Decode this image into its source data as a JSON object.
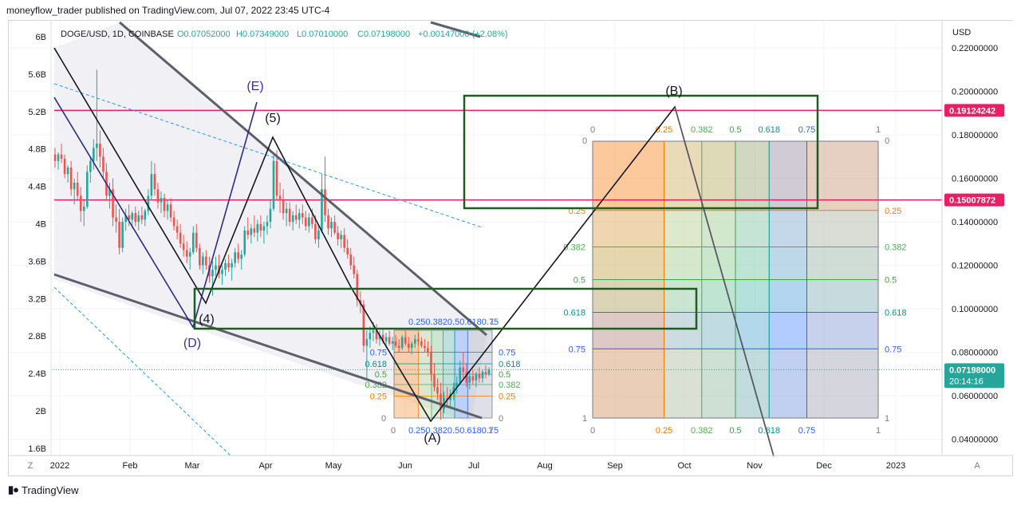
{
  "header": {
    "publish_text": "moneyflow_trader published on TradingView.com, Jul 07, 2022 23:45 UTC-4"
  },
  "symbol_bar": {
    "symbol": "DOGE/USD, 1D, COINBASE",
    "open": "O0.07052000",
    "high": "H0.07349000",
    "low": "L0.07010000",
    "close": "C0.07198000",
    "change": "+0.00147000 (+2.08%)"
  },
  "footer": {
    "brand": "TradingView"
  },
  "chart_data": {
    "type": "candlestick",
    "symbol": "DOGE/USD",
    "timeframe": "1D",
    "exchange": "COINBASE",
    "right_axis": {
      "unit": "USD",
      "ticks": [
        "0.22000000",
        "0.20000000",
        "0.18000000",
        "0.16000000",
        "0.14000000",
        "0.12000000",
        "0.10000000",
        "0.08000000",
        "0.06000000",
        "0.04000000"
      ],
      "range": [
        0.0325,
        0.2325
      ]
    },
    "left_axis": {
      "ticks": [
        "6B",
        "5.6B",
        "5.2B",
        "4.8B",
        "4.4B",
        "4B",
        "3.6B",
        "3.2B",
        "2.8B",
        "2.4B",
        "2B",
        "1.6B"
      ]
    },
    "x_axis": {
      "ticks": [
        "2022",
        "Feb",
        "Mar",
        "Apr",
        "May",
        "Jun",
        "Jul",
        "Aug",
        "Sep",
        "Oct",
        "Nov",
        "Dec",
        "2023"
      ]
    },
    "price_labels": [
      {
        "value": "0.19124242",
        "color": "#e91e63"
      },
      {
        "value": "0.15007872",
        "color": "#e91e63"
      },
      {
        "value": "0.07198000",
        "time": "20:14:16",
        "color": "#26a69a"
      }
    ],
    "horizontal_levels": [
      0.19124242,
      0.15007872
    ],
    "current_price": 0.07198,
    "wave_labels": [
      {
        "text": "(E)",
        "color": "#3f2e9c"
      },
      {
        "text": "(5)",
        "color": "#131722"
      },
      {
        "text": "(4)",
        "color": "#131722"
      },
      {
        "text": "(D)",
        "color": "#3f2e9c"
      },
      {
        "text": "(A)",
        "color": "#131722"
      },
      {
        "text": "(B)",
        "color": "#131722"
      }
    ],
    "fib_levels": [
      "0",
      "0.25",
      "0.382",
      "0.5",
      "0.618",
      "0.75",
      "1"
    ],
    "fib_colors": {
      "0.25": "#f57c00",
      "0.382": "#4caf50",
      "0.5": "#43a047",
      "0.618": "#009688",
      "0.75": "#2962ff",
      "1": "#787b86",
      "0": "#787b86"
    },
    "small_fib": {
      "top_labels_text": "0.250.3820.50.6180.75",
      "bottom_labels_text": "0.250.3820.50.6180.75"
    },
    "scale_buttons": [
      "Z",
      "A"
    ],
    "candles": [
      [
        0.171,
        0.174,
        0.165,
        0.168
      ],
      [
        0.168,
        0.172,
        0.164,
        0.171
      ],
      [
        0.171,
        0.176,
        0.167,
        0.169
      ],
      [
        0.169,
        0.171,
        0.16,
        0.162
      ],
      [
        0.162,
        0.166,
        0.158,
        0.165
      ],
      [
        0.165,
        0.168,
        0.152,
        0.155
      ],
      [
        0.155,
        0.16,
        0.148,
        0.158
      ],
      [
        0.158,
        0.163,
        0.15,
        0.152
      ],
      [
        0.152,
        0.156,
        0.14,
        0.145
      ],
      [
        0.145,
        0.15,
        0.138,
        0.147
      ],
      [
        0.147,
        0.166,
        0.146,
        0.163
      ],
      [
        0.163,
        0.17,
        0.158,
        0.168
      ],
      [
        0.168,
        0.178,
        0.164,
        0.174
      ],
      [
        0.174,
        0.21,
        0.168,
        0.176
      ],
      [
        0.176,
        0.182,
        0.165,
        0.17
      ],
      [
        0.17,
        0.174,
        0.16,
        0.163
      ],
      [
        0.163,
        0.167,
        0.15,
        0.152
      ],
      [
        0.152,
        0.158,
        0.146,
        0.155
      ],
      [
        0.155,
        0.16,
        0.138,
        0.142
      ],
      [
        0.142,
        0.148,
        0.135,
        0.14
      ],
      [
        0.14,
        0.146,
        0.125,
        0.128
      ],
      [
        0.128,
        0.142,
        0.126,
        0.14
      ],
      [
        0.14,
        0.146,
        0.136,
        0.143
      ],
      [
        0.143,
        0.148,
        0.138,
        0.141
      ],
      [
        0.141,
        0.145,
        0.137,
        0.144
      ],
      [
        0.144,
        0.147,
        0.138,
        0.14
      ],
      [
        0.14,
        0.145,
        0.136,
        0.143
      ],
      [
        0.143,
        0.147,
        0.139,
        0.141
      ],
      [
        0.141,
        0.146,
        0.138,
        0.145
      ],
      [
        0.145,
        0.155,
        0.143,
        0.152
      ],
      [
        0.152,
        0.168,
        0.15,
        0.162
      ],
      [
        0.162,
        0.167,
        0.152,
        0.155
      ],
      [
        0.155,
        0.158,
        0.146,
        0.149
      ],
      [
        0.149,
        0.154,
        0.144,
        0.151
      ],
      [
        0.151,
        0.153,
        0.142,
        0.145
      ],
      [
        0.145,
        0.15,
        0.141,
        0.148
      ],
      [
        0.148,
        0.151,
        0.14,
        0.142
      ],
      [
        0.142,
        0.145,
        0.136,
        0.138
      ],
      [
        0.138,
        0.141,
        0.132,
        0.135
      ],
      [
        0.135,
        0.139,
        0.128,
        0.13
      ],
      [
        0.13,
        0.134,
        0.124,
        0.127
      ],
      [
        0.127,
        0.131,
        0.121,
        0.124
      ],
      [
        0.124,
        0.128,
        0.118,
        0.126
      ],
      [
        0.126,
        0.138,
        0.125,
        0.135
      ],
      [
        0.135,
        0.139,
        0.126,
        0.128
      ],
      [
        0.128,
        0.13,
        0.118,
        0.12
      ],
      [
        0.12,
        0.126,
        0.116,
        0.124
      ],
      [
        0.124,
        0.127,
        0.118,
        0.12
      ],
      [
        0.12,
        0.124,
        0.112,
        0.115
      ],
      [
        0.115,
        0.122,
        0.106,
        0.118
      ],
      [
        0.118,
        0.124,
        0.115,
        0.12
      ],
      [
        0.12,
        0.125,
        0.114,
        0.116
      ],
      [
        0.116,
        0.12,
        0.111,
        0.118
      ],
      [
        0.118,
        0.123,
        0.115,
        0.121
      ],
      [
        0.121,
        0.125,
        0.117,
        0.119
      ],
      [
        0.119,
        0.123,
        0.113,
        0.121
      ],
      [
        0.121,
        0.128,
        0.119,
        0.126
      ],
      [
        0.126,
        0.13,
        0.121,
        0.123
      ],
      [
        0.123,
        0.127,
        0.118,
        0.125
      ],
      [
        0.125,
        0.138,
        0.124,
        0.136
      ],
      [
        0.136,
        0.142,
        0.132,
        0.134
      ],
      [
        0.134,
        0.139,
        0.13,
        0.137
      ],
      [
        0.137,
        0.143,
        0.133,
        0.135
      ],
      [
        0.135,
        0.141,
        0.131,
        0.139
      ],
      [
        0.139,
        0.143,
        0.133,
        0.136
      ],
      [
        0.136,
        0.14,
        0.13,
        0.138
      ],
      [
        0.138,
        0.143,
        0.134,
        0.14
      ],
      [
        0.14,
        0.15,
        0.137,
        0.146
      ],
      [
        0.146,
        0.172,
        0.145,
        0.168
      ],
      [
        0.168,
        0.173,
        0.15,
        0.152
      ],
      [
        0.152,
        0.158,
        0.144,
        0.15
      ],
      [
        0.15,
        0.155,
        0.141,
        0.144
      ],
      [
        0.144,
        0.149,
        0.138,
        0.146
      ],
      [
        0.146,
        0.149,
        0.138,
        0.14
      ],
      [
        0.14,
        0.145,
        0.136,
        0.143
      ],
      [
        0.143,
        0.148,
        0.139,
        0.141
      ],
      [
        0.141,
        0.146,
        0.137,
        0.144
      ],
      [
        0.144,
        0.148,
        0.139,
        0.142
      ],
      [
        0.142,
        0.145,
        0.136,
        0.138
      ],
      [
        0.138,
        0.144,
        0.135,
        0.142
      ],
      [
        0.142,
        0.146,
        0.137,
        0.139
      ],
      [
        0.139,
        0.143,
        0.13,
        0.132
      ],
      [
        0.132,
        0.138,
        0.128,
        0.136
      ],
      [
        0.136,
        0.162,
        0.135,
        0.155
      ],
      [
        0.155,
        0.17,
        0.14,
        0.143
      ],
      [
        0.143,
        0.146,
        0.134,
        0.137
      ],
      [
        0.137,
        0.142,
        0.133,
        0.14
      ],
      [
        0.14,
        0.143,
        0.134,
        0.135
      ],
      [
        0.135,
        0.138,
        0.129,
        0.132
      ],
      [
        0.132,
        0.136,
        0.128,
        0.134
      ],
      [
        0.134,
        0.137,
        0.126,
        0.128
      ],
      [
        0.128,
        0.132,
        0.123,
        0.125
      ],
      [
        0.125,
        0.128,
        0.118,
        0.12
      ],
      [
        0.12,
        0.124,
        0.114,
        0.116
      ],
      [
        0.116,
        0.118,
        0.101,
        0.104
      ],
      [
        0.104,
        0.108,
        0.098,
        0.102
      ],
      [
        0.102,
        0.104,
        0.08,
        0.083
      ],
      [
        0.083,
        0.09,
        0.068,
        0.086
      ],
      [
        0.086,
        0.092,
        0.082,
        0.089
      ],
      [
        0.089,
        0.094,
        0.085,
        0.09
      ],
      [
        0.09,
        0.093,
        0.084,
        0.086
      ],
      [
        0.086,
        0.09,
        0.083,
        0.088
      ],
      [
        0.088,
        0.091,
        0.084,
        0.085
      ],
      [
        0.085,
        0.089,
        0.082,
        0.087
      ],
      [
        0.087,
        0.09,
        0.083,
        0.084
      ],
      [
        0.084,
        0.087,
        0.081,
        0.085
      ],
      [
        0.085,
        0.088,
        0.082,
        0.083
      ],
      [
        0.083,
        0.086,
        0.08,
        0.082
      ],
      [
        0.082,
        0.088,
        0.081,
        0.087
      ],
      [
        0.087,
        0.09,
        0.083,
        0.084
      ],
      [
        0.084,
        0.087,
        0.08,
        0.082
      ],
      [
        0.082,
        0.085,
        0.079,
        0.084
      ],
      [
        0.084,
        0.088,
        0.082,
        0.086
      ],
      [
        0.086,
        0.089,
        0.083,
        0.085
      ],
      [
        0.085,
        0.087,
        0.082,
        0.083
      ],
      [
        0.083,
        0.086,
        0.08,
        0.082
      ],
      [
        0.082,
        0.085,
        0.078,
        0.08
      ],
      [
        0.08,
        0.083,
        0.067,
        0.07
      ],
      [
        0.07,
        0.075,
        0.062,
        0.064
      ],
      [
        0.064,
        0.068,
        0.058,
        0.061
      ],
      [
        0.061,
        0.066,
        0.049,
        0.054
      ],
      [
        0.054,
        0.062,
        0.052,
        0.059
      ],
      [
        0.059,
        0.064,
        0.055,
        0.058
      ],
      [
        0.058,
        0.063,
        0.054,
        0.061
      ],
      [
        0.061,
        0.066,
        0.058,
        0.064
      ],
      [
        0.064,
        0.069,
        0.061,
        0.066
      ],
      [
        0.066,
        0.076,
        0.065,
        0.073
      ],
      [
        0.073,
        0.08,
        0.068,
        0.071
      ],
      [
        0.071,
        0.075,
        0.064,
        0.066
      ],
      [
        0.066,
        0.071,
        0.063,
        0.069
      ],
      [
        0.069,
        0.072,
        0.065,
        0.067
      ],
      [
        0.067,
        0.071,
        0.064,
        0.07
      ],
      [
        0.07,
        0.073,
        0.066,
        0.068
      ],
      [
        0.068,
        0.072,
        0.066,
        0.071
      ],
      [
        0.071,
        0.074,
        0.068,
        0.07
      ],
      [
        0.07,
        0.073,
        0.069,
        0.072
      ]
    ]
  }
}
